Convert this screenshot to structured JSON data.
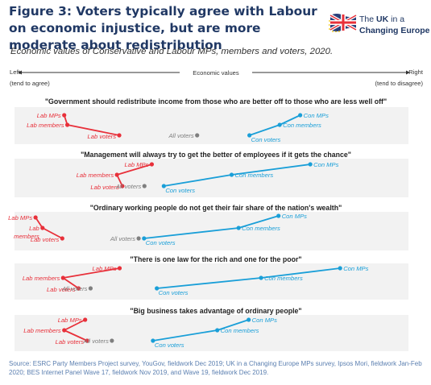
{
  "figure": {
    "title": "Figure 3: Voters typically agree with Labour on economic injustice, but are more moderate about redistribution",
    "subtitle": "Economic values of Conservative and Labour MPs, members and voters, 2020.",
    "source": "Source: ESRC Party Members Project survey, YouGov, fieldwork Dec 2019; UK in a Changing Europe MPs survey, Ipsos Mori, fieldwork Jan-Feb 2020; BES Internet Panel Wave 17, fieldwork Nov 2019, and Wave 19, fieldwork Dec 2019."
  },
  "logo": {
    "line1_prefix": "The ",
    "line1_bold": "UK",
    "line1_suffix": " in a",
    "line2": "Changing Europe"
  },
  "axis": {
    "left_label": "Left",
    "left_sub": "(tend to agree)",
    "center_label": "Economic values",
    "right_label": "Right",
    "right_sub": "(tend to disagree)"
  },
  "colors": {
    "labour": "#e8303a",
    "conservative": "#1a9fd8",
    "all_voters": "#7f7f7f",
    "panel_bg": "#f2f2f2",
    "title": "#203864"
  },
  "chart_data": {
    "type": "scatter",
    "x_axis": {
      "left": "Left",
      "right": "Right",
      "label": "Economic values",
      "range": [
        0,
        100
      ]
    },
    "series_labels": {
      "lab_mps": "Lab MPs",
      "lab_members": "Lab members",
      "lab_voters": "Lab voters",
      "all_voters": "All voters",
      "con_voters": "Con voters",
      "con_members": "Con members",
      "con_mps": "Con MPs"
    },
    "panels": [
      {
        "statement": "\"Government should redistribute income from those who are better off to those who are less well off\"",
        "lab_mps": 12.0,
        "lab_members": 12.8,
        "lab_voters": 26.2,
        "all_voters": 46.3,
        "con_voters": 59.8,
        "con_members": 67.6,
        "con_mps": 72.9
      },
      {
        "statement": "\"Management will always try to get the better of employees if it gets the chance\"",
        "lab_mps": 34.6,
        "lab_members": 25.6,
        "lab_voters": 27.0,
        "all_voters": 32.7,
        "con_voters": 37.7,
        "con_members": 55.2,
        "con_mps": 75.5
      },
      {
        "statement": "\"Ordinary working people do not get their fair share of the nation's wealth\"",
        "lab_mps": 4.6,
        "lab_members": 6.4,
        "lab_voters": 11.5,
        "all_voters": 31.2,
        "con_voters": 32.6,
        "con_members": 57.0,
        "con_mps": 67.3
      },
      {
        "statement": "\"There is one law for the rich and one for the poor\"",
        "lab_mps": 26.3,
        "lab_members": 11.7,
        "lab_voters": 15.7,
        "all_voters": 18.8,
        "con_voters": 35.9,
        "con_members": 62.8,
        "con_mps": 83.2
      },
      {
        "statement": "\"Big business takes advantage of ordinary people\"",
        "lab_mps": 17.4,
        "lab_members": 12.0,
        "lab_voters": 17.9,
        "all_voters": 24.3,
        "con_voters": 34.9,
        "con_members": 51.5,
        "con_mps": 59.6
      }
    ]
  }
}
